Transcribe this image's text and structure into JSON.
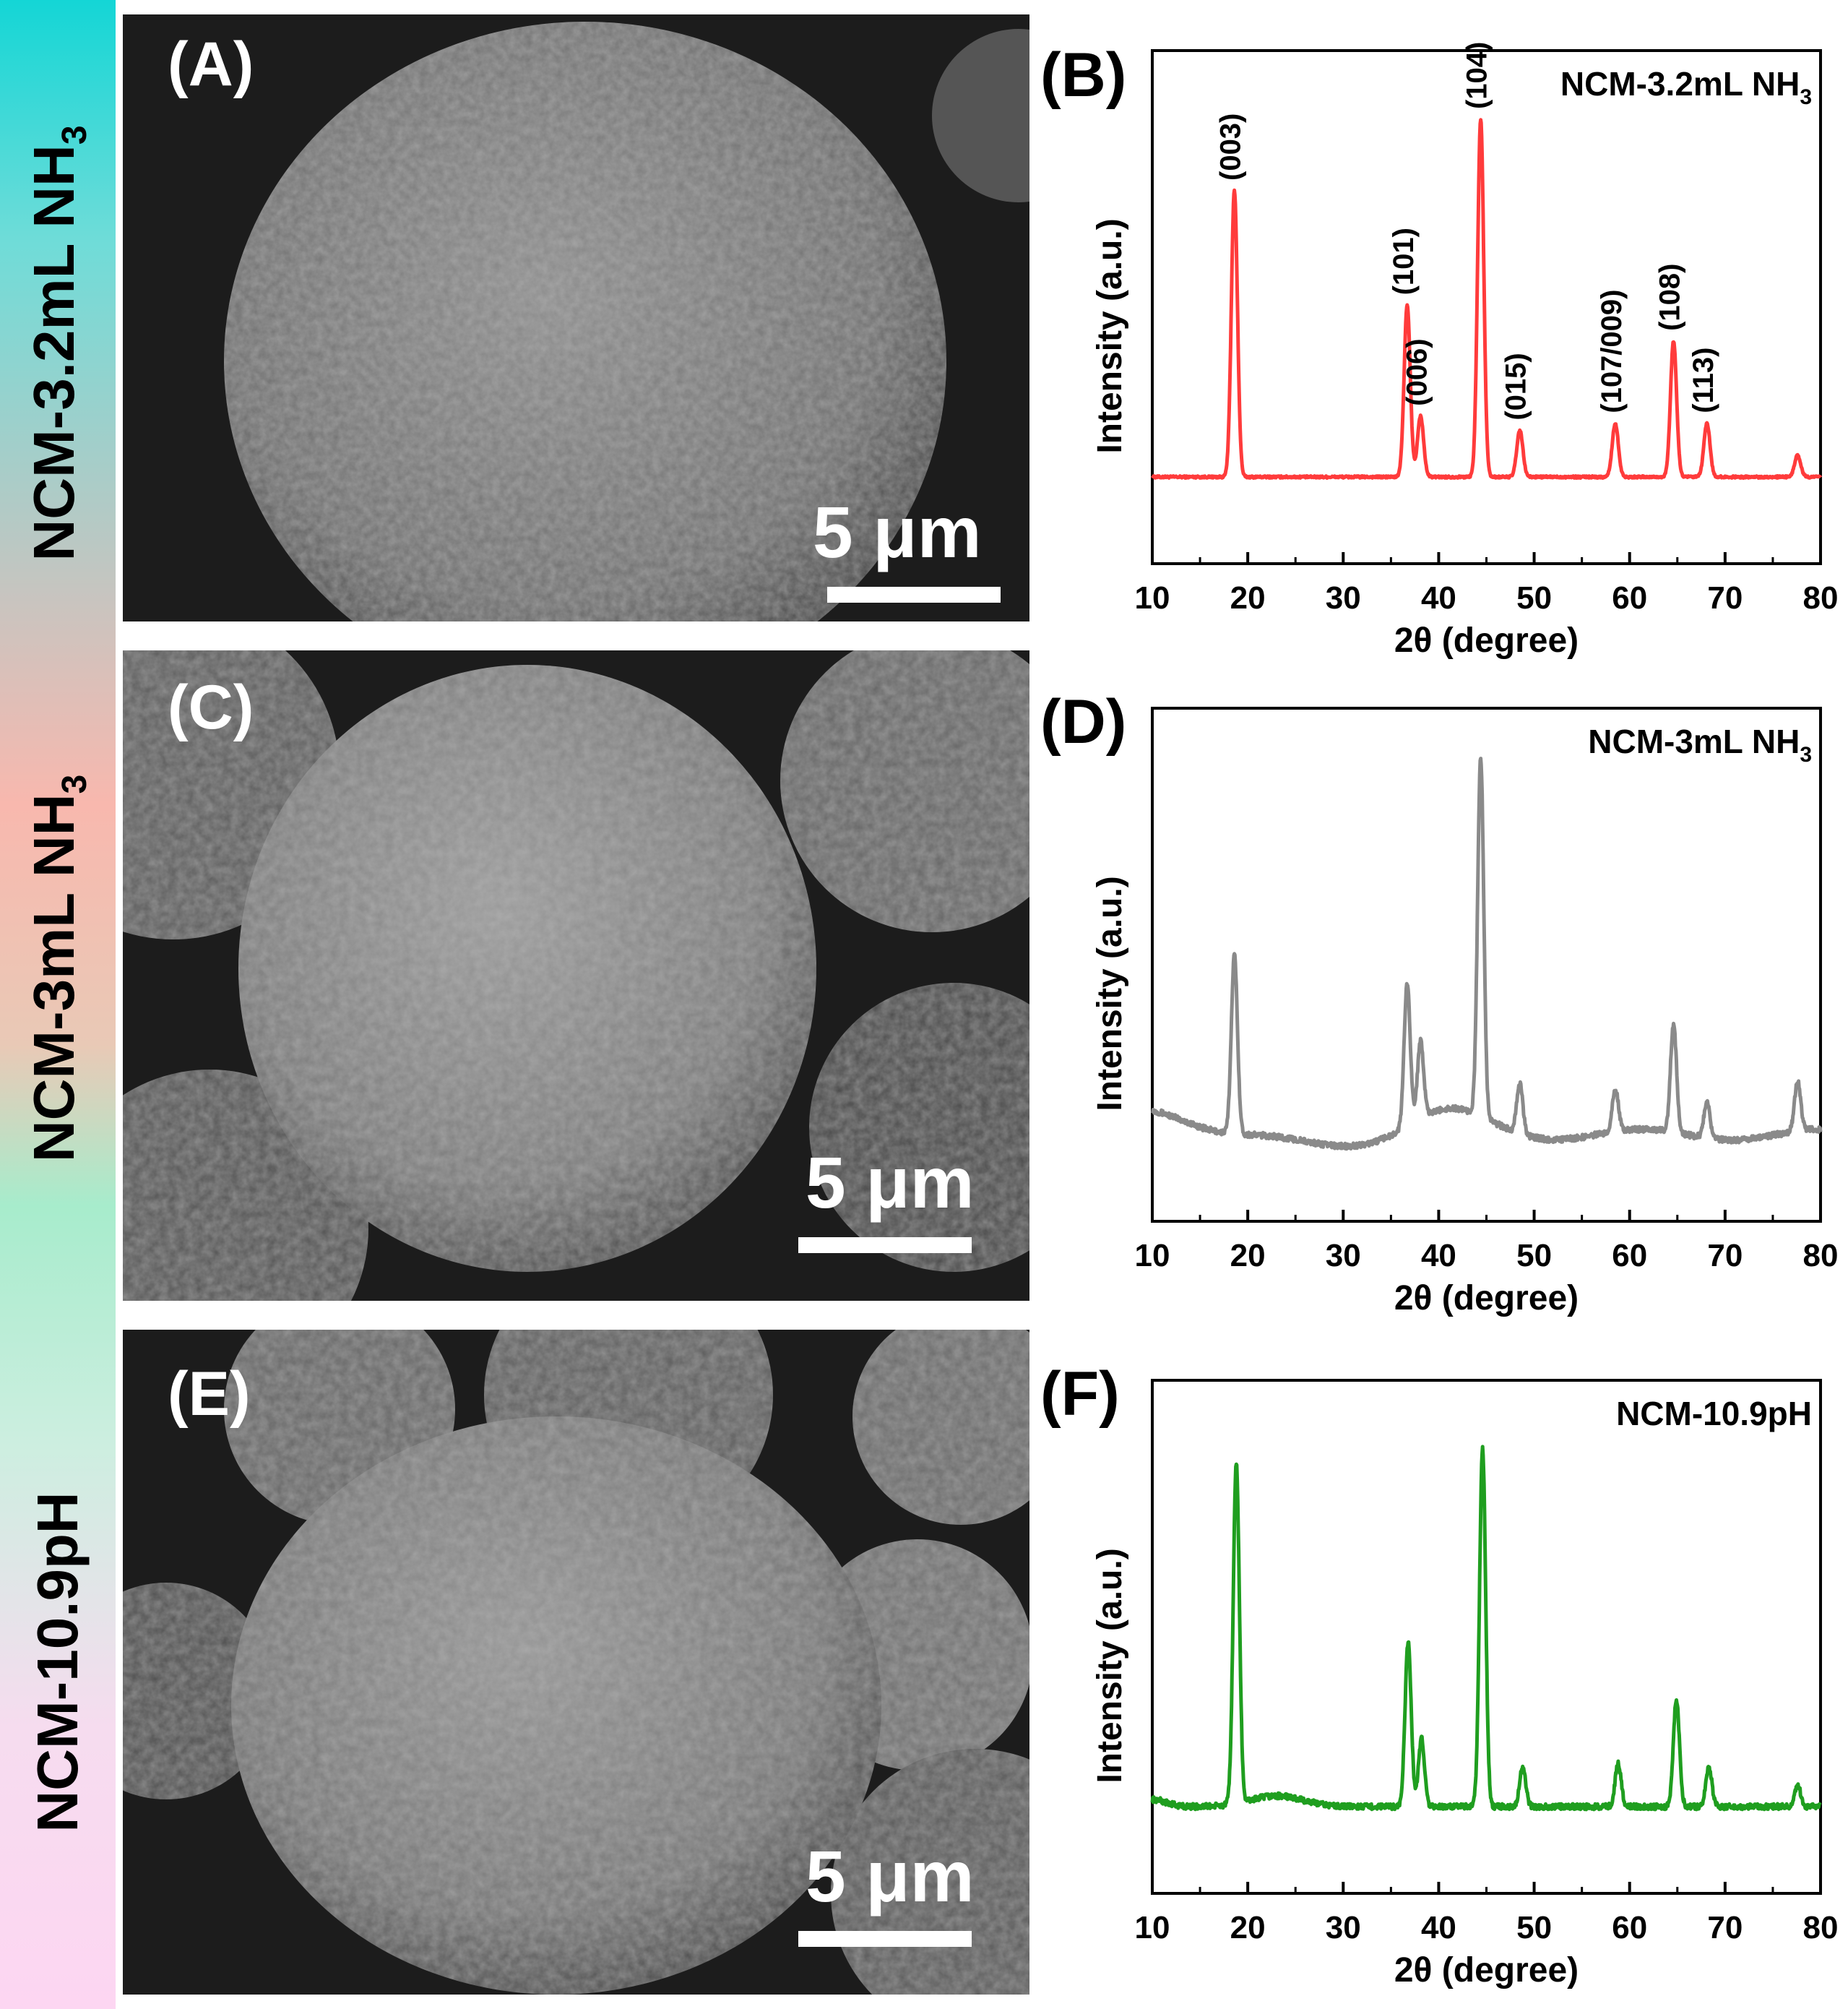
{
  "sidebar": {
    "labels": [
      "NCM-3.2mL NH3",
      "NCM-3mL NH3",
      "NCM-10.9pH"
    ]
  },
  "panels": {
    "A": "(A)",
    "B": "(B)",
    "C": "(C)",
    "D": "(D)",
    "E": "(E)",
    "F": "(F)"
  },
  "sem": {
    "scale_label": "5 μm"
  },
  "chart_data": [
    {
      "type": "line",
      "title": "NCM-3.2mL NH3",
      "xlabel": "2θ (degree)",
      "ylabel": "Intensity (a.u.)",
      "xlim": [
        10,
        80
      ],
      "x_ticks": [
        10,
        20,
        30,
        40,
        50,
        60,
        70,
        80
      ],
      "color": "#ff3b3b",
      "series": [
        {
          "peaks": [
            [
              18.6,
              0.8
            ],
            [
              36.7,
              0.48
            ],
            [
              38.1,
              0.17
            ],
            [
              44.4,
              1.0
            ],
            [
              48.5,
              0.13
            ],
            [
              58.5,
              0.15
            ],
            [
              64.6,
              0.38
            ],
            [
              68.1,
              0.15
            ],
            [
              77.6,
              0.06
            ]
          ]
        }
      ],
      "annotations": [
        {
          "x": 18.6,
          "text": "(003)"
        },
        {
          "x": 36.7,
          "text": "(101)"
        },
        {
          "x": 38.1,
          "text": "(006)"
        },
        {
          "x": 44.4,
          "text": "(104)"
        },
        {
          "x": 48.5,
          "text": "(015)"
        },
        {
          "x": 58.5,
          "text": "(107/009)"
        },
        {
          "x": 64.6,
          "text": "(108)"
        },
        {
          "x": 68.1,
          "text": "(113)"
        }
      ]
    },
    {
      "type": "line",
      "title": "NCM-3mL NH3",
      "xlabel": "2θ (degree)",
      "ylabel": "Intensity (a.u.)",
      "xlim": [
        10,
        80
      ],
      "x_ticks": [
        10,
        20,
        30,
        40,
        50,
        60,
        70,
        80
      ],
      "color": "#8a8a8a",
      "series": [
        {
          "peaks": [
            [
              18.6,
              0.5
            ],
            [
              36.7,
              0.4
            ],
            [
              38.1,
              0.22
            ],
            [
              44.4,
              1.0
            ],
            [
              48.5,
              0.14
            ],
            [
              58.5,
              0.12
            ],
            [
              64.6,
              0.3
            ],
            [
              68.1,
              0.1
            ],
            [
              77.6,
              0.14
            ]
          ]
        }
      ]
    },
    {
      "type": "line",
      "title": "NCM-10.9pH",
      "xlabel": "2θ (degree)",
      "ylabel": "Intensity (a.u.)",
      "xlim": [
        10,
        80
      ],
      "x_ticks": [
        10,
        20,
        30,
        40,
        50,
        60,
        70,
        80
      ],
      "color": "#1f9e1f",
      "series": [
        {
          "peaks": [
            [
              18.8,
              0.95
            ],
            [
              36.8,
              0.46
            ],
            [
              38.2,
              0.19
            ],
            [
              44.6,
              1.0
            ],
            [
              48.8,
              0.11
            ],
            [
              58.8,
              0.12
            ],
            [
              64.9,
              0.3
            ],
            [
              68.3,
              0.11
            ],
            [
              77.6,
              0.06
            ]
          ]
        }
      ]
    }
  ]
}
